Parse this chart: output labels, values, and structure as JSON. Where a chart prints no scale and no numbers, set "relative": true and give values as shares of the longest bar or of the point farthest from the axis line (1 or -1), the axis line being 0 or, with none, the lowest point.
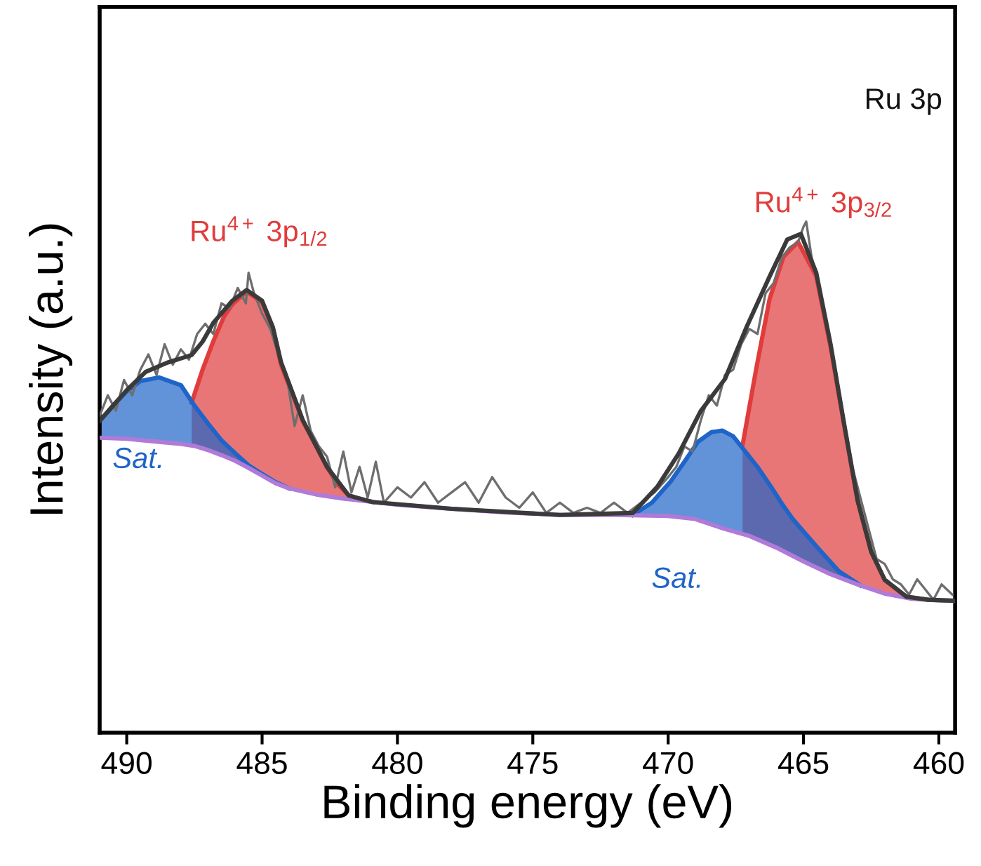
{
  "chart_data": {
    "type": "line",
    "relative": true,
    "xlabel": "Binding energy (eV)",
    "ylabel": "Intensity (a.u.)",
    "xlim": [
      491,
      459.4
    ],
    "xticks": [
      490,
      485,
      480,
      475,
      470,
      465,
      460
    ],
    "tick_labels": "x",
    "grid": false,
    "legend": false,
    "annotations": [
      "Ru 3p",
      "Ru$^{4+}$ 3p$_{1/2}$",
      "Ru$^{4+}$ 3p$_{3/2}$",
      "Sat.",
      "Sat."
    ],
    "series": [
      {
        "type": "area",
        "color": "#e03c3c",
        "x": [
          487.6,
          487.2,
          486.8,
          486.4,
          486.1,
          485.57,
          485,
          484.6,
          484.3,
          483.9,
          483.5,
          483,
          482.6,
          482.2,
          481.8,
          481.3,
          480.9
        ],
        "values": [
          0.646,
          0.71,
          0.766,
          0.815,
          0.838,
          0.863,
          0.842,
          0.79,
          0.72,
          0.665,
          0.61,
          0.56,
          0.519,
          0.486,
          0.464,
          0.455,
          0.451
        ]
      },
      {
        "type": "area",
        "color": "#e03c3c",
        "x": [
          467.25,
          466.75,
          466.25,
          465.74,
          465.2,
          464.53,
          464.0,
          463.5,
          463.0,
          462.5,
          462.0,
          461.2,
          460.4
        ],
        "values": [
          0.563,
          0.711,
          0.849,
          0.931,
          0.96,
          0.893,
          0.755,
          0.602,
          0.453,
          0.354,
          0.299,
          0.266,
          0.26
        ]
      },
      {
        "type": "area",
        "color": "#1f64c8",
        "x": [
          491,
          490.5,
          490,
          489.5,
          488.8,
          488,
          487.5,
          487,
          486.5,
          486,
          485.5,
          485,
          484.5,
          484
        ],
        "values": [
          0.61,
          0.64,
          0.668,
          0.688,
          0.695,
          0.68,
          0.64,
          0.605,
          0.572,
          0.547,
          0.523,
          0.506,
          0.49,
          0.478
        ]
      },
      {
        "type": "area",
        "color": "#1f64c8",
        "x": [
          471.3,
          470.6,
          469.9,
          469.4,
          468.9,
          468.4,
          468.0,
          467.6,
          467.3,
          466.7,
          466.2,
          465.8,
          465.4,
          464.5,
          463.7,
          462.9
        ],
        "values": [
          0.426,
          0.45,
          0.492,
          0.53,
          0.569,
          0.588,
          0.591,
          0.58,
          0.56,
          0.52,
          0.481,
          0.448,
          0.418,
          0.363,
          0.316,
          0.288
        ]
      },
      {
        "color": "#b07ad8",
        "x": [
          491,
          490,
          489,
          488,
          487.5,
          487,
          486.5,
          486,
          485.5,
          485,
          484.5,
          484,
          483,
          482,
          481,
          480,
          478,
          476,
          474,
          472,
          470,
          469,
          468,
          467,
          466,
          465,
          464,
          463,
          462,
          461,
          460,
          459.4
        ],
        "values": [
          0.577,
          0.575,
          0.57,
          0.565,
          0.561,
          0.553,
          0.543,
          0.532,
          0.518,
          0.503,
          0.488,
          0.478,
          0.466,
          0.458,
          0.452,
          0.446,
          0.438,
          0.431,
          0.426,
          0.426,
          0.424,
          0.418,
          0.4,
          0.385,
          0.362,
          0.335,
          0.31,
          0.29,
          0.272,
          0.262,
          0.259,
          0.258
        ]
      },
      {
        "color": "#6e6e6e",
        "x": [
          491,
          490.7,
          490.4,
          490.1,
          489.8,
          489.5,
          489.2,
          488.9,
          488.6,
          488.3,
          488.0,
          487.7,
          487.4,
          487.1,
          486.8,
          486.5,
          486.2,
          485.9,
          485.6,
          485.5,
          485.3,
          485.0,
          484.7,
          484.4,
          484.1,
          483.8,
          483.5,
          483.2,
          482.9,
          482.6,
          482.3,
          482.0,
          481.7,
          481.4,
          481.1,
          480.8,
          480.5,
          480.0,
          479.5,
          479.0,
          478.5,
          478.0,
          477.5,
          477.0,
          476.5,
          476.0,
          475.5,
          475.0,
          474.5,
          474.0,
          473.5,
          473.0,
          472.5,
          472.0,
          471.5,
          471.0,
          470.5,
          470.0,
          469.7,
          469.4,
          469.1,
          468.8,
          468.5,
          468.2,
          467.9,
          467.6,
          467.3,
          467.0,
          466.7,
          466.4,
          466.1,
          465.8,
          465.5,
          465.2,
          465.0,
          464.9,
          464.7,
          464.4,
          464.1,
          463.8,
          463.5,
          463.2,
          462.9,
          462.6,
          462.3,
          462.0,
          461.7,
          461.4,
          461.1,
          460.8,
          460.5,
          460.2,
          459.9,
          459.5
        ],
        "values": [
          0.62,
          0.66,
          0.63,
          0.69,
          0.66,
          0.71,
          0.74,
          0.7,
          0.76,
          0.72,
          0.75,
          0.73,
          0.78,
          0.8,
          0.78,
          0.84,
          0.83,
          0.87,
          0.84,
          0.9,
          0.86,
          0.82,
          0.79,
          0.74,
          0.7,
          0.6,
          0.66,
          0.59,
          0.56,
          0.54,
          0.48,
          0.55,
          0.47,
          0.52,
          0.46,
          0.53,
          0.45,
          0.48,
          0.46,
          0.49,
          0.45,
          0.47,
          0.49,
          0.45,
          0.5,
          0.46,
          0.44,
          0.47,
          0.43,
          0.45,
          0.43,
          0.44,
          0.43,
          0.45,
          0.43,
          0.45,
          0.47,
          0.5,
          0.52,
          0.56,
          0.55,
          0.61,
          0.66,
          0.64,
          0.7,
          0.71,
          0.76,
          0.79,
          0.78,
          0.86,
          0.88,
          0.93,
          0.95,
          0.96,
          0.99,
          1.0,
          0.93,
          0.87,
          0.78,
          0.7,
          0.6,
          0.52,
          0.46,
          0.4,
          0.34,
          0.33,
          0.3,
          0.29,
          0.27,
          0.3,
          0.28,
          0.26,
          0.29,
          0.27
        ]
      },
      {
        "color": "#3a3a3a",
        "x": [
          491,
          490.5,
          490,
          489.3,
          488.5,
          487.6,
          487.2,
          486.8,
          486.1,
          485.57,
          485,
          484.6,
          484.3,
          483.5,
          482.6,
          481.8,
          480.9,
          478,
          474,
          471.3,
          470.4,
          469.6,
          468.8,
          467.9,
          467.1,
          466.25,
          465.6,
          465.1,
          464.53,
          464.0,
          463.5,
          463.0,
          462.5,
          462.0,
          461.2,
          460.4,
          459.4
        ],
        "values": [
          0.61,
          0.64,
          0.67,
          0.706,
          0.724,
          0.739,
          0.765,
          0.802,
          0.845,
          0.866,
          0.845,
          0.793,
          0.725,
          0.612,
          0.52,
          0.464,
          0.451,
          0.438,
          0.426,
          0.43,
          0.481,
          0.547,
          0.629,
          0.692,
          0.794,
          0.893,
          0.965,
          0.976,
          0.9,
          0.76,
          0.604,
          0.454,
          0.354,
          0.299,
          0.266,
          0.26,
          0.258
        ]
      }
    ]
  }
}
